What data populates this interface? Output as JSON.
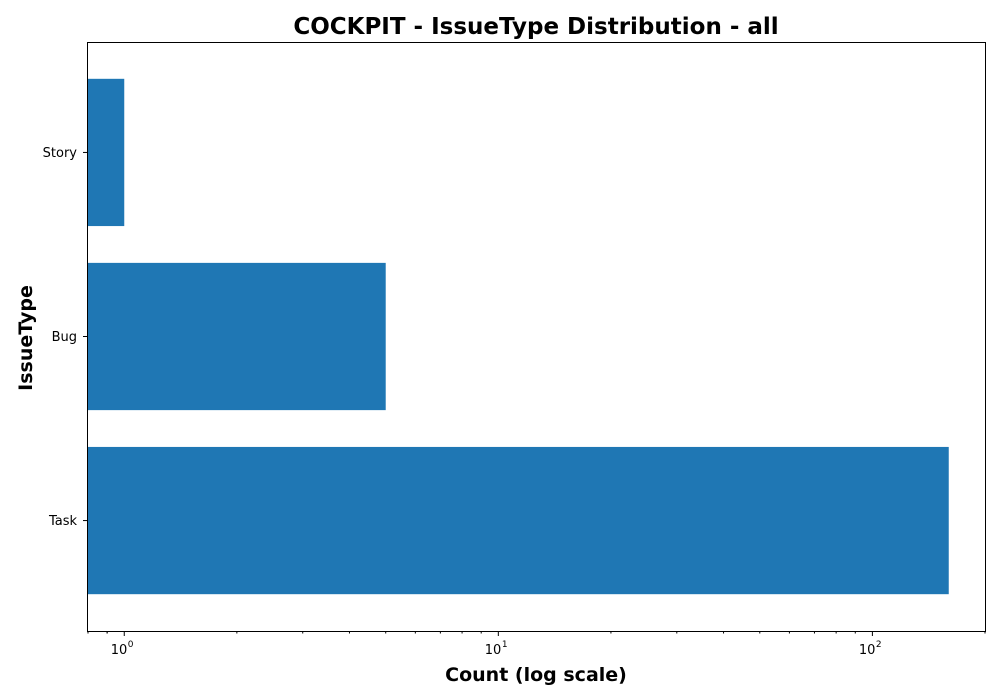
{
  "chart_data": {
    "type": "bar",
    "orientation": "horizontal",
    "title": "COCKPIT - IssueType Distribution - all",
    "xlabel": "Count (log scale)",
    "ylabel": "IssueType",
    "x_scale": "log",
    "xlim": [
      0.8,
      200
    ],
    "x_ticks": [
      {
        "value": 1,
        "base": "10",
        "exp": "0"
      },
      {
        "value": 10,
        "base": "10",
        "exp": "1"
      },
      {
        "value": 100,
        "base": "10",
        "exp": "2"
      }
    ],
    "categories": [
      "Task",
      "Bug",
      "Story"
    ],
    "values": [
      160,
      5,
      1
    ],
    "color": "#1f77b4",
    "grid": false
  }
}
